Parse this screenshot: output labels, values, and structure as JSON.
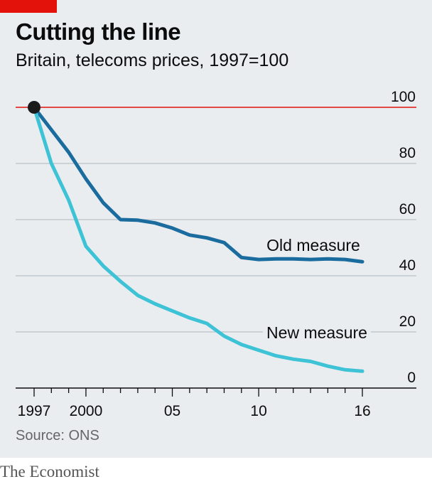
{
  "header": {
    "title": "Cutting the line",
    "subtitle": "Britain, telecoms prices, 1997=100"
  },
  "footer": {
    "source": "Source: ONS",
    "brand": "The Economist"
  },
  "colors": {
    "background": "#e9edf0",
    "accent_red": "#e3120b",
    "old_measure": "#1a6c9e",
    "new_measure": "#3ec2d6",
    "grid": "#b7c1c8",
    "baseline_marker": "#1a1a1a"
  },
  "chart_data": {
    "type": "line",
    "title": "Cutting the line",
    "subtitle": "Britain, telecoms prices, 1997=100",
    "xlim": [
      1997,
      2016
    ],
    "ylim": [
      0,
      100
    ],
    "x_ticks": [
      1997,
      2000,
      2005,
      2010,
      2016
    ],
    "x_tick_labels": [
      "1997",
      "2000",
      "05",
      "10",
      "16"
    ],
    "y_ticks": [
      0,
      20,
      40,
      60,
      80,
      100
    ],
    "y_tick_labels": [
      "0",
      "20",
      "40",
      "60",
      "80",
      "100"
    ],
    "y_axis_side": "right",
    "reference_line": {
      "y": 100,
      "color": "#e3120b"
    },
    "grid": true,
    "legend": "inline labels",
    "series": [
      {
        "name": "Old measure",
        "x": [
          1997,
          1998,
          1999,
          2000,
          2001,
          2002,
          2003,
          2004,
          2005,
          2006,
          2007,
          2008,
          2009,
          2010,
          2011,
          2012,
          2013,
          2014,
          2015,
          2016
        ],
        "values": [
          100,
          92,
          84,
          74.5,
          66,
          60,
          59.8,
          58.8,
          57,
          54.5,
          53.5,
          51.8,
          46.5,
          45.8,
          46,
          46,
          45.8,
          46,
          45.8,
          45
        ],
        "color": "#1a6c9e"
      },
      {
        "name": "New measure",
        "x": [
          1997,
          1998,
          1999,
          2000,
          2001,
          2002,
          2003,
          2004,
          2005,
          2006,
          2007,
          2008,
          2009,
          2010,
          2011,
          2012,
          2013,
          2014,
          2015,
          2016
        ],
        "values": [
          100,
          80,
          67,
          50.5,
          43.5,
          38,
          33,
          30,
          27.5,
          25,
          23,
          18.5,
          15.5,
          13.5,
          11.5,
          10.3,
          9.5,
          7.8,
          6.5,
          6
        ],
        "color": "#3ec2d6"
      }
    ],
    "start_marker": {
      "x": 1997,
      "y": 100
    }
  }
}
